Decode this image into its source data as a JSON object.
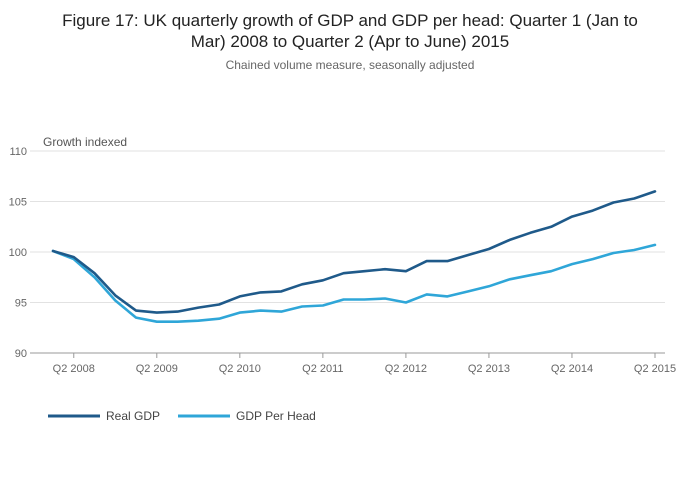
{
  "chart_data": {
    "type": "line",
    "title_line1": "Figure 17: UK quarterly growth of GDP and GDP per head: Quarter 1 (Jan to",
    "title_line2": "Mar) 2008 to Quarter 2 (Apr to June) 2015",
    "subtitle": "Chained volume measure, seasonally adjusted",
    "ylabel": "Growth indexed",
    "ylim": [
      90,
      110
    ],
    "yticks": [
      90,
      95,
      100,
      105,
      110
    ],
    "grid": true,
    "legend_position": "bottom-left",
    "x_labels": [
      "Q1 2008",
      "Q2 2008",
      "Q3 2008",
      "Q4 2008",
      "Q1 2009",
      "Q2 2009",
      "Q3 2009",
      "Q4 2009",
      "Q1 2010",
      "Q2 2010",
      "Q3 2010",
      "Q4 2010",
      "Q1 2011",
      "Q2 2011",
      "Q3 2011",
      "Q4 2011",
      "Q1 2012",
      "Q2 2012",
      "Q3 2012",
      "Q4 2012",
      "Q1 2013",
      "Q2 2013",
      "Q3 2013",
      "Q4 2013",
      "Q1 2014",
      "Q2 2014",
      "Q3 2014",
      "Q4 2014",
      "Q1 2015",
      "Q2 2015"
    ],
    "xticks": [
      "Q2 2008",
      "Q2 2009",
      "Q2 2010",
      "Q2 2011",
      "Q2 2012",
      "Q2 2013",
      "Q2 2014",
      "Q2 2015"
    ],
    "series": [
      {
        "name": "Real GDP",
        "color": "#1f5a8a",
        "values": [
          100.1,
          99.5,
          97.9,
          95.7,
          94.2,
          94.0,
          94.1,
          94.5,
          94.8,
          95.6,
          96.0,
          96.1,
          96.8,
          97.2,
          97.9,
          98.1,
          98.3,
          98.1,
          99.1,
          99.1,
          99.7,
          100.3,
          101.2,
          101.9,
          102.5,
          103.5,
          104.1,
          104.9,
          105.3,
          106.0
        ]
      },
      {
        "name": "GDP Per Head",
        "color": "#2fa6d8",
        "values": [
          100.1,
          99.3,
          97.5,
          95.2,
          93.5,
          93.1,
          93.1,
          93.2,
          93.4,
          94.0,
          94.2,
          94.1,
          94.6,
          94.7,
          95.3,
          95.3,
          95.4,
          95.0,
          95.8,
          95.6,
          96.1,
          96.6,
          97.3,
          97.7,
          98.1,
          98.8,
          99.3,
          99.9,
          100.2,
          100.7
        ]
      }
    ]
  }
}
